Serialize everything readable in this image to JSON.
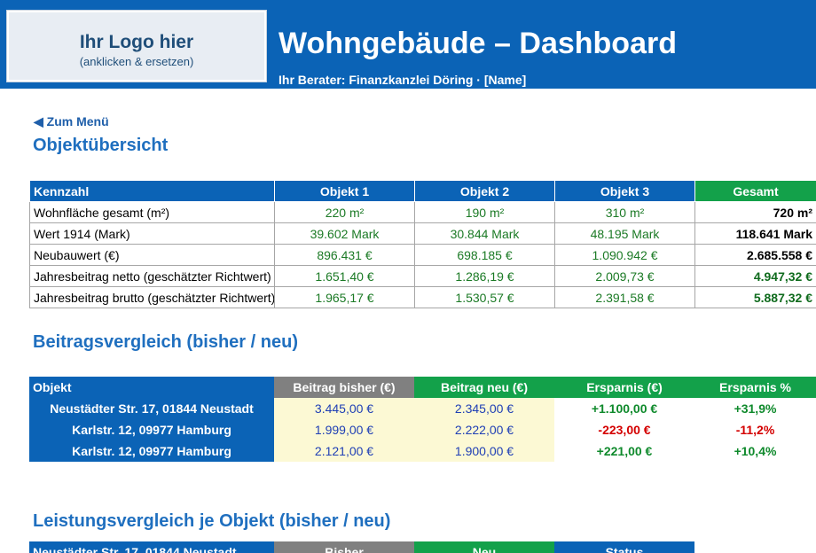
{
  "header": {
    "logo_title": "Ihr Logo hier",
    "logo_sub": "(anklicken & ersetzen)",
    "title": "Wohngebäude – Dashboard",
    "subtitle": "Ihr Berater: Finanzkanzlei Döring · [Name]"
  },
  "nav": {
    "back_label": "◀ Zum Menü"
  },
  "overview": {
    "title": "Objektübersicht",
    "headers": [
      "Kennzahl",
      "Objekt 1",
      "Objekt 2",
      "Objekt 3",
      "Gesamt"
    ],
    "rows": [
      {
        "label": "Wohnfläche gesamt (m²)",
        "values": [
          "220 m²",
          "190 m²",
          "310 m²"
        ],
        "total": "720 m²"
      },
      {
        "label": "Wert 1914 (Mark)",
        "values": [
          "39.602 Mark",
          "30.844 Mark",
          "48.195 Mark"
        ],
        "total": "118.641 Mark"
      },
      {
        "label": "Neubauwert (€)",
        "values": [
          "896.431 €",
          "698.185 €",
          "1.090.942 €"
        ],
        "total": "2.685.558 €"
      },
      {
        "label": "Jahresbeitrag netto (geschätzter Richtwert)",
        "values": [
          "1.651,40 €",
          "1.286,19 €",
          "2.009,73 €"
        ],
        "total": "4.947,32 €"
      },
      {
        "label": "Jahresbeitrag brutto (geschätzter Richtwert)",
        "values": [
          "1.965,17 €",
          "1.530,57 €",
          "2.391,58 €"
        ],
        "total": "5.887,32 €"
      }
    ]
  },
  "compare": {
    "title": "Beitragsvergleich (bisher / neu)",
    "headers": [
      "Objekt",
      "Beitrag bisher (€)",
      "Beitrag neu (€)",
      "Ersparnis (€)",
      "Ersparnis %"
    ],
    "rows": [
      {
        "object": "Neustädter Str. 17, 01844 Neustadt",
        "old": "3.445,00 €",
        "new": "2.345,00 €",
        "saving": "+1.100,00 €",
        "saving_pct": "+31,9%"
      },
      {
        "object": "Karlstr. 12, 09977 Hamburg",
        "old": "1.999,00 €",
        "new": "2.222,00 €",
        "saving": "-223,00 €",
        "saving_pct": "-11,2%"
      },
      {
        "object": "Karlstr. 12, 09977 Hamburg",
        "old": "2.121,00 €",
        "new": "1.900,00 €",
        "saving": "+221,00 €",
        "saving_pct": "+10,4%"
      }
    ]
  },
  "performance": {
    "title": "Leistungsvergleich je Objekt (bisher / neu)",
    "headers": [
      "Neustädter Str. 17, 01844 Neustadt",
      "Bisher",
      "Neu",
      "Status"
    ]
  },
  "colors": {
    "header_blue": "#0b63b6",
    "total_green": "#13a14a",
    "old_gray": "#808080",
    "highlight_yellow": "#fcf9d4",
    "negative_red": "#d40000"
  }
}
